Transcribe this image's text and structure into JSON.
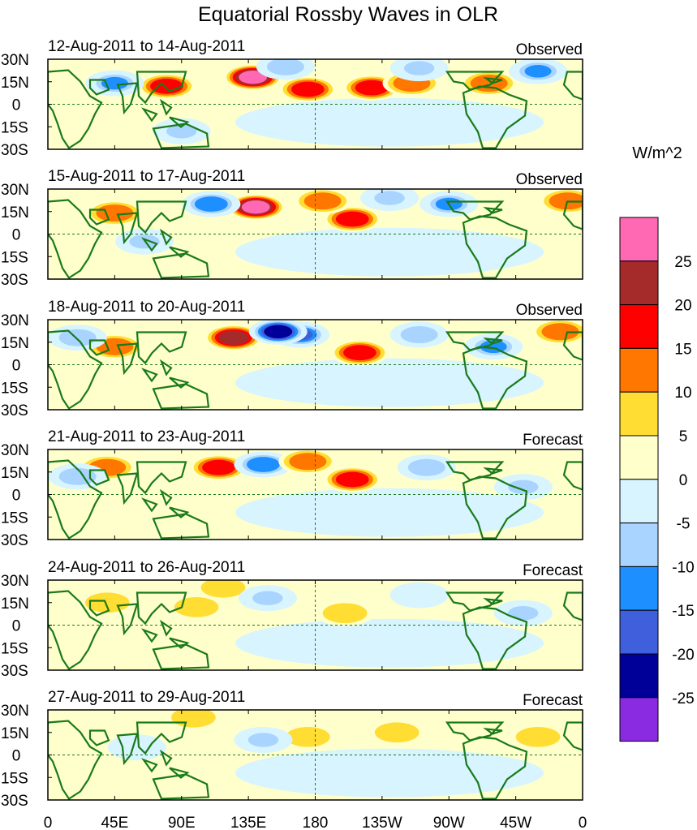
{
  "chart_data": {
    "type": "heatmap",
    "title": "Equatorial Rossby Waves in OLR",
    "units": "W/m^2",
    "x_tick_labels": [
      "0",
      "45E",
      "90E",
      "135E",
      "180",
      "135W",
      "90W",
      "45W",
      "0"
    ],
    "y_tick_labels": [
      "30N",
      "15N",
      "0",
      "15S",
      "30S"
    ],
    "xlim": [
      0,
      360
    ],
    "ylim": [
      -30,
      30
    ],
    "colorbar": {
      "levels": [
        -25,
        -20,
        -15,
        -10,
        -5,
        0,
        5,
        10,
        15,
        20,
        25
      ],
      "labels": [
        "25",
        "20",
        "15",
        "10",
        "5",
        "0",
        "-5",
        "-10",
        "-15",
        "-20",
        "-25"
      ],
      "colors": [
        "#8a2be2",
        "#000099",
        "#3f5fdc",
        "#1e8fff",
        "#a8d4ff",
        "#d7f4ff",
        "#ffffcc",
        "#ffdd33",
        "#ff7700",
        "#ff0000",
        "#a52a2a",
        "#ff69b4"
      ]
    },
    "panels": [
      {
        "date_range": "12-Aug-2011 to 14-Aug-2011",
        "status": "Observed",
        "anomalies": [
          {
            "lon": 80,
            "lat": 12,
            "value": 18
          },
          {
            "lon": 138,
            "lat": 18,
            "value": 28
          },
          {
            "lon": 175,
            "lat": 10,
            "value": 15
          },
          {
            "lon": 218,
            "lat": 11,
            "value": 17
          },
          {
            "lon": 245,
            "lat": 14,
            "value": 12
          },
          {
            "lon": 297,
            "lat": 14,
            "value": 14
          },
          {
            "lon": 45,
            "lat": 14,
            "value": -12
          },
          {
            "lon": 160,
            "lat": 25,
            "value": -10
          },
          {
            "lon": 250,
            "lat": 24,
            "value": -8
          },
          {
            "lon": 330,
            "lat": 22,
            "value": -13
          },
          {
            "lon": 255,
            "lat": -10,
            "value": -4
          },
          {
            "lon": 90,
            "lat": -18,
            "value": -6
          }
        ]
      },
      {
        "date_range": "15-Aug-2011 to 17-Aug-2011",
        "status": "Observed",
        "anomalies": [
          {
            "lon": 140,
            "lat": 18,
            "value": 28
          },
          {
            "lon": 205,
            "lat": 10,
            "value": 18
          },
          {
            "lon": 45,
            "lat": 14,
            "value": 12
          },
          {
            "lon": 185,
            "lat": 22,
            "value": 10
          },
          {
            "lon": 270,
            "lat": 20,
            "value": -12
          },
          {
            "lon": 110,
            "lat": 20,
            "value": -15
          },
          {
            "lon": 350,
            "lat": 22,
            "value": 13
          },
          {
            "lon": 230,
            "lat": 24,
            "value": -7
          },
          {
            "lon": 65,
            "lat": -5,
            "value": -8
          },
          {
            "lon": 270,
            "lat": -8,
            "value": -3
          }
        ]
      },
      {
        "date_range": "18-Aug-2011 to 20-Aug-2011",
        "status": "Observed",
        "anomalies": [
          {
            "lon": 125,
            "lat": 18,
            "value": 22
          },
          {
            "lon": 210,
            "lat": 8,
            "value": 18
          },
          {
            "lon": 170,
            "lat": 20,
            "value": -18
          },
          {
            "lon": 45,
            "lat": 12,
            "value": 12
          },
          {
            "lon": 155,
            "lat": 22,
            "value": -25
          },
          {
            "lon": 250,
            "lat": 20,
            "value": -10
          },
          {
            "lon": 300,
            "lat": 12,
            "value": -12
          },
          {
            "lon": 345,
            "lat": 22,
            "value": 10
          },
          {
            "lon": 20,
            "lat": 18,
            "value": -10
          }
        ]
      },
      {
        "date_range": "21-Aug-2011 to 23-Aug-2011",
        "status": "Forecast",
        "anomalies": [
          {
            "lon": 115,
            "lat": 18,
            "value": 18
          },
          {
            "lon": 205,
            "lat": 10,
            "value": 15
          },
          {
            "lon": 145,
            "lat": 20,
            "value": -15
          },
          {
            "lon": 40,
            "lat": 18,
            "value": 10
          },
          {
            "lon": 175,
            "lat": 22,
            "value": 10
          },
          {
            "lon": 255,
            "lat": 18,
            "value": -10
          },
          {
            "lon": 320,
            "lat": 5,
            "value": -8
          },
          {
            "lon": 20,
            "lat": 12,
            "value": -10
          }
        ]
      },
      {
        "date_range": "24-Aug-2011 to 26-Aug-2011",
        "status": "Forecast",
        "anomalies": [
          {
            "lon": 100,
            "lat": 12,
            "value": 6
          },
          {
            "lon": 200,
            "lat": 8,
            "value": 7
          },
          {
            "lon": 118,
            "lat": 25,
            "value": 8
          },
          {
            "lon": 148,
            "lat": 18,
            "value": -8
          },
          {
            "lon": 320,
            "lat": 8,
            "value": -9
          },
          {
            "lon": 40,
            "lat": 15,
            "value": 6
          },
          {
            "lon": 250,
            "lat": 20,
            "value": -5
          }
        ]
      },
      {
        "date_range": "27-Aug-2011 to 29-Aug-2011",
        "status": "Forecast",
        "anomalies": [
          {
            "lon": 98,
            "lat": 25,
            "value": 8
          },
          {
            "lon": 175,
            "lat": 12,
            "value": 6
          },
          {
            "lon": 235,
            "lat": 15,
            "value": 5
          },
          {
            "lon": 145,
            "lat": 10,
            "value": -6
          },
          {
            "lon": 60,
            "lat": 5,
            "value": -5
          },
          {
            "lon": 330,
            "lat": 12,
            "value": 6
          }
        ]
      }
    ]
  }
}
